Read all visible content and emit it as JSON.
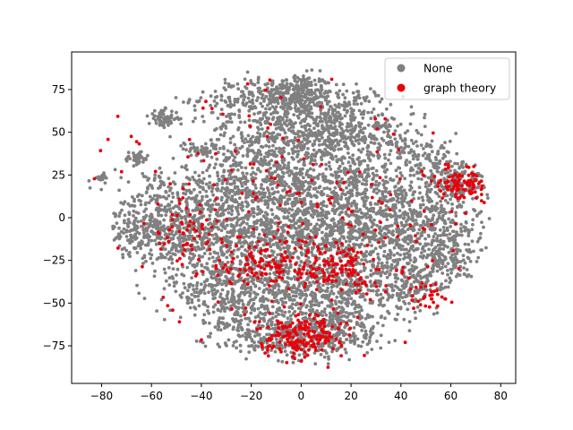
{
  "chart_data": {
    "type": "scatter",
    "title": "",
    "xlabel": "",
    "ylabel": "",
    "xlim": [
      -92,
      86
    ],
    "ylim": [
      -97,
      97
    ],
    "x_ticks": [
      -80,
      -60,
      -40,
      -20,
      0,
      20,
      40,
      60,
      80
    ],
    "y_ticks": [
      -75,
      -50,
      -25,
      0,
      25,
      50,
      75
    ],
    "legend_position": "top-right",
    "grid": false,
    "series": [
      {
        "name": "None",
        "color": "#808080",
        "clusters": [
          {
            "cx": -2,
            "cy": 72,
            "sx": 7,
            "sy": 6,
            "n": 260
          },
          {
            "cx": -20,
            "cy": 70,
            "sx": 12,
            "sy": 6,
            "n": 180
          },
          {
            "cx": 15,
            "cy": 62,
            "sx": 10,
            "sy": 8,
            "n": 200
          },
          {
            "cx": 8,
            "cy": 48,
            "sx": 12,
            "sy": 8,
            "n": 260
          },
          {
            "cx": -15,
            "cy": 45,
            "sx": 12,
            "sy": 10,
            "n": 260
          },
          {
            "cx": 30,
            "cy": 45,
            "sx": 10,
            "sy": 10,
            "n": 160
          },
          {
            "cx": -55,
            "cy": 58,
            "sx": 3,
            "sy": 2.5,
            "n": 70
          },
          {
            "cx": -66,
            "cy": 35,
            "sx": 2.5,
            "sy": 2,
            "n": 45
          },
          {
            "cx": -40,
            "cy": 40,
            "sx": 3,
            "sy": 2,
            "n": 40
          },
          {
            "cx": -80,
            "cy": 23,
            "sx": 1.5,
            "sy": 1.2,
            "n": 18
          },
          {
            "cx": 65,
            "cy": 22,
            "sx": 7,
            "sy": 7,
            "n": 160
          },
          {
            "cx": 45,
            "cy": 10,
            "sx": 12,
            "sy": 12,
            "n": 260
          },
          {
            "cx": 20,
            "cy": 15,
            "sx": 12,
            "sy": 12,
            "n": 340
          },
          {
            "cx": -5,
            "cy": 18,
            "sx": 12,
            "sy": 12,
            "n": 340
          },
          {
            "cx": -28,
            "cy": 15,
            "sx": 12,
            "sy": 10,
            "n": 300
          },
          {
            "cx": -55,
            "cy": 5,
            "sx": 10,
            "sy": 10,
            "n": 260
          },
          {
            "cx": -65,
            "cy": -10,
            "sx": 7,
            "sy": 6,
            "n": 160
          },
          {
            "cx": -42,
            "cy": -15,
            "sx": 10,
            "sy": 10,
            "n": 260
          },
          {
            "cx": -20,
            "cy": -12,
            "sx": 12,
            "sy": 10,
            "n": 300
          },
          {
            "cx": 5,
            "cy": -10,
            "sx": 12,
            "sy": 10,
            "n": 340
          },
          {
            "cx": 30,
            "cy": -12,
            "sx": 12,
            "sy": 10,
            "n": 300
          },
          {
            "cx": 55,
            "cy": -10,
            "sx": 10,
            "sy": 10,
            "n": 220
          },
          {
            "cx": -30,
            "cy": -42,
            "sx": 12,
            "sy": 10,
            "n": 260
          },
          {
            "cx": -5,
            "cy": -40,
            "sx": 12,
            "sy": 10,
            "n": 340
          },
          {
            "cx": 20,
            "cy": -42,
            "sx": 12,
            "sy": 10,
            "n": 300
          },
          {
            "cx": 45,
            "cy": -38,
            "sx": 8,
            "sy": 8,
            "n": 160
          },
          {
            "cx": 0,
            "cy": -70,
            "sx": 10,
            "sy": 7,
            "n": 300
          },
          {
            "cx": 18,
            "cy": -65,
            "sx": 8,
            "sy": 8,
            "n": 160
          },
          {
            "cx": -25,
            "cy": -62,
            "sx": 8,
            "sy": 8,
            "n": 160
          },
          {
            "cx": 60,
            "cy": -25,
            "sx": 6,
            "sy": 6,
            "n": 90
          },
          {
            "cx": 50,
            "cy": 35,
            "sx": 6,
            "sy": 5,
            "n": 80
          }
        ]
      },
      {
        "name": "graph theory",
        "color": "#e8000b",
        "clusters": [
          {
            "cx": 0,
            "cy": -70,
            "sx": 8,
            "sy": 6,
            "n": 180
          },
          {
            "cx": 15,
            "cy": -30,
            "sx": 8,
            "sy": 8,
            "n": 120
          },
          {
            "cx": -15,
            "cy": -25,
            "sx": 8,
            "sy": 8,
            "n": 100
          },
          {
            "cx": 66,
            "cy": 20,
            "sx": 6,
            "sy": 5,
            "n": 110
          },
          {
            "cx": -45,
            "cy": -10,
            "sx": 8,
            "sy": 8,
            "n": 40
          },
          {
            "cx": 50,
            "cy": -45,
            "sx": 5,
            "sy": 5,
            "n": 25
          },
          {
            "cx": 0,
            "cy": 0,
            "sx": 45,
            "sy": 45,
            "n": 260
          }
        ]
      }
    ]
  }
}
